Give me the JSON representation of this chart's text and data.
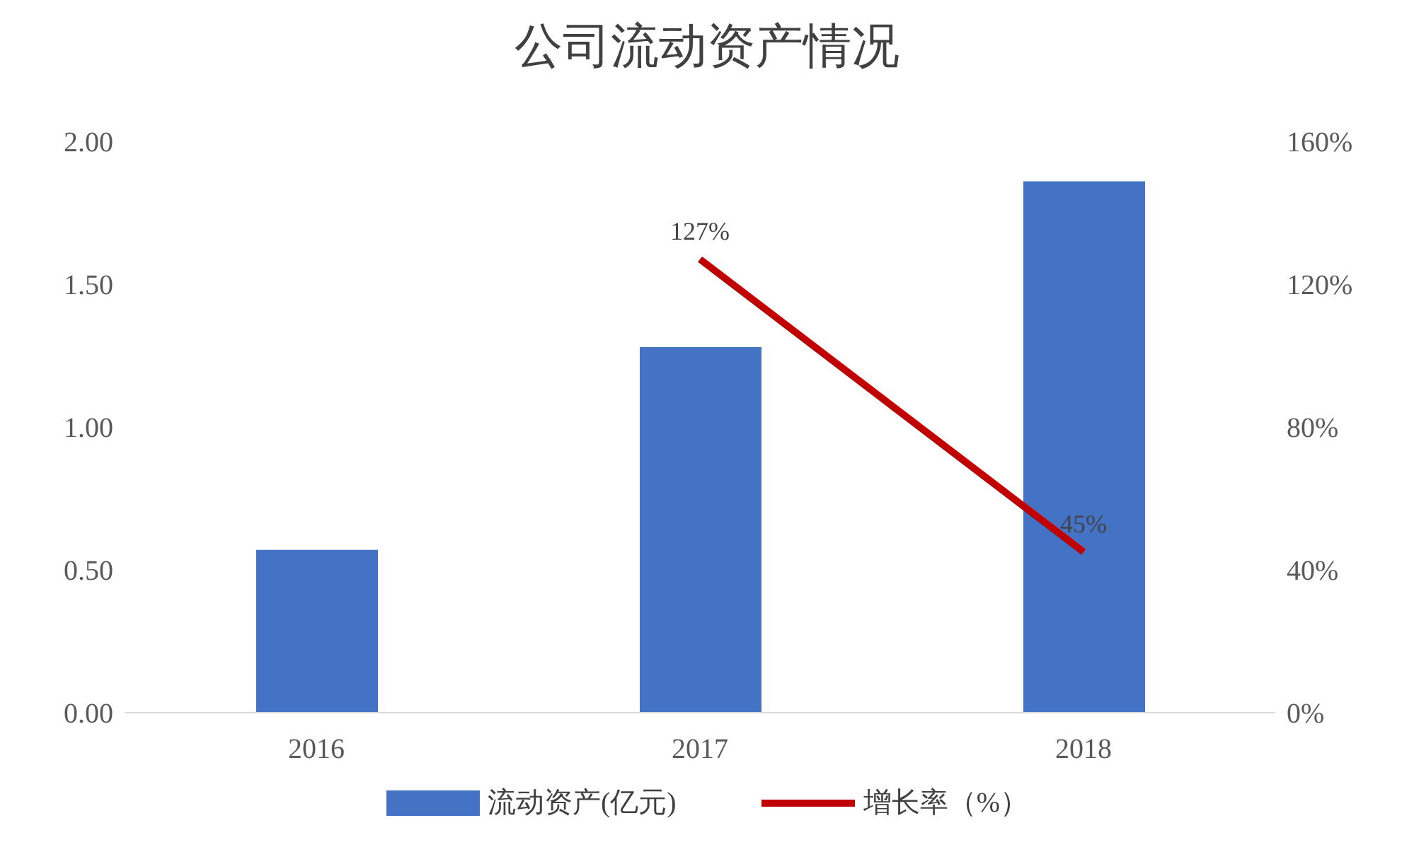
{
  "chart_data": {
    "type": "bar",
    "title": "公司流动资产情况",
    "categories": [
      "2016",
      "2017",
      "2018"
    ],
    "series": [
      {
        "name": "流动资产(亿元)",
        "color": "#4472c4",
        "values": [
          0.57,
          1.28,
          1.86
        ]
      },
      {
        "name": "增长率（%）",
        "type": "line",
        "axis": "y2",
        "color": "#c00000",
        "values": [
          null,
          127,
          45
        ],
        "value_labels": [
          null,
          "127%",
          "45%"
        ]
      }
    ],
    "ylim": [
      0,
      2
    ],
    "yticks": [
      {
        "value": 0,
        "label": "0.00"
      },
      {
        "value": 0.5,
        "label": "0.50"
      },
      {
        "value": 1,
        "label": "1.00"
      },
      {
        "value": 1.5,
        "label": "1.50"
      },
      {
        "value": 2,
        "label": "2.00"
      }
    ],
    "y2lim": [
      0,
      160
    ],
    "y2ticks": [
      {
        "value": 0,
        "label": "0%"
      },
      {
        "value": 40,
        "label": "40%"
      },
      {
        "value": 80,
        "label": "80%"
      },
      {
        "value": 120,
        "label": "120%"
      },
      {
        "value": 160,
        "label": "160%"
      }
    ],
    "grid": false,
    "legend": "bottom",
    "marker": "none"
  }
}
